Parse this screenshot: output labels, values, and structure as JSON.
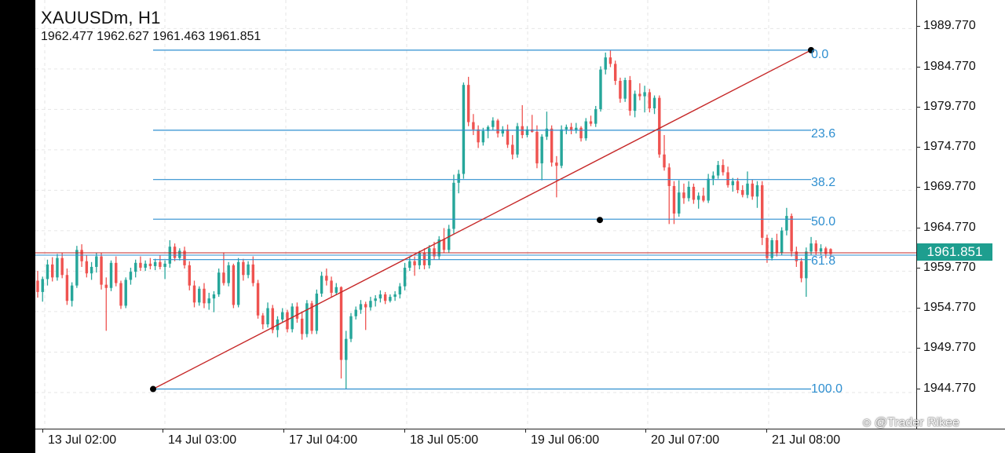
{
  "header": {
    "title": "XAUUSDm, H1",
    "ohlc": "1962.477 1962.627 1961.463 1961.851"
  },
  "current_price": "1961.851",
  "watermark": "@Trader Rikee",
  "colors": {
    "bull": "#26a69a",
    "bear": "#ef5350",
    "fib": "#2f8fd0",
    "trend": "#c62828",
    "badge": "#1e9e8f",
    "grid": "#e6e6e6"
  },
  "chart_data": {
    "type": "candlestick",
    "symbol": "XAUUSDm",
    "timeframe": "H1",
    "ylim": [
      1940.3,
      1993.3
    ],
    "y_ticks": [
      "1989.770",
      "1984.770",
      "1979.770",
      "1974.770",
      "1969.770",
      "1964.770",
      "1959.770",
      "1954.770",
      "1949.770",
      "1944.770"
    ],
    "x_ticks": [
      "13 Jul 02:00",
      "14 Jul 03:00",
      "17 Jul 04:00",
      "18 Jul 05:00",
      "19 Jul 06:00",
      "20 Jul 07:00",
      "21 Jul 08:00"
    ],
    "grid": true,
    "fibonacci": {
      "high": 1987.1,
      "low": 1945.2,
      "levels": [
        {
          "label": "0.0",
          "price": 1987.1
        },
        {
          "label": "23.6",
          "price": 1977.2
        },
        {
          "label": "38.2",
          "price": 1971.1
        },
        {
          "label": "50.0",
          "price": 1966.2
        },
        {
          "label": "61.8",
          "price": 1961.2
        },
        {
          "label": "100.0",
          "price": 1945.2
        }
      ]
    },
    "trendline": {
      "start_price": 1945.2,
      "end_price": 1987.1,
      "mid_price": 1966.1
    },
    "current_price": 1961.851,
    "candles": [
      [
        1958.6,
        1959.8,
        1956.5,
        1957.2
      ],
      [
        1957.2,
        1959.1,
        1956.0,
        1958.8
      ],
      [
        1958.8,
        1961.2,
        1958.0,
        1960.6
      ],
      [
        1960.6,
        1961.5,
        1958.5,
        1959.0
      ],
      [
        1959.0,
        1961.9,
        1958.6,
        1961.4
      ],
      [
        1961.4,
        1962.0,
        1958.9,
        1959.3
      ],
      [
        1959.3,
        1960.1,
        1955.6,
        1956.1
      ],
      [
        1956.1,
        1958.4,
        1955.4,
        1958.0
      ],
      [
        1958.0,
        1962.9,
        1957.7,
        1962.4
      ],
      [
        1962.4,
        1963.1,
        1960.3,
        1961.0
      ],
      [
        1961.0,
        1961.7,
        1959.0,
        1959.5
      ],
      [
        1959.5,
        1960.9,
        1958.7,
        1960.3
      ],
      [
        1960.3,
        1962.0,
        1959.6,
        1961.6
      ],
      [
        1961.6,
        1962.0,
        1957.5,
        1958.1
      ],
      [
        1958.1,
        1959.0,
        1952.4,
        1957.7
      ],
      [
        1957.7,
        1961.1,
        1957.3,
        1960.8
      ],
      [
        1960.8,
        1961.6,
        1957.9,
        1958.3
      ],
      [
        1958.3,
        1958.6,
        1955.1,
        1955.5
      ],
      [
        1955.5,
        1959.0,
        1955.2,
        1958.7
      ],
      [
        1958.7,
        1960.2,
        1958.1,
        1959.7
      ],
      [
        1959.7,
        1961.2,
        1959.0,
        1960.8
      ],
      [
        1960.8,
        1961.6,
        1959.8,
        1960.2
      ],
      [
        1960.2,
        1961.1,
        1959.8,
        1960.7
      ],
      [
        1960.7,
        1961.4,
        1960.0,
        1960.4
      ],
      [
        1960.4,
        1961.3,
        1959.9,
        1960.9
      ],
      [
        1960.9,
        1961.7,
        1960.0,
        1960.3
      ],
      [
        1960.3,
        1961.1,
        1958.8,
        1960.7
      ],
      [
        1960.7,
        1963.6,
        1960.2,
        1962.8
      ],
      [
        1962.8,
        1963.2,
        1961.0,
        1961.4
      ],
      [
        1961.4,
        1962.6,
        1961.1,
        1962.3
      ],
      [
        1962.3,
        1962.8,
        1960.1,
        1960.5
      ],
      [
        1960.5,
        1961.0,
        1957.4,
        1958.0
      ],
      [
        1958.0,
        1958.6,
        1955.3,
        1955.9
      ],
      [
        1955.9,
        1957.9,
        1955.5,
        1957.6
      ],
      [
        1957.6,
        1958.3,
        1955.2,
        1955.8
      ],
      [
        1955.8,
        1957.1,
        1955.0,
        1956.4
      ],
      [
        1956.4,
        1957.3,
        1954.7,
        1956.9
      ],
      [
        1956.9,
        1960.1,
        1956.6,
        1959.6
      ],
      [
        1959.6,
        1962.1,
        1958.0,
        1958.3
      ],
      [
        1958.3,
        1960.9,
        1957.9,
        1960.5
      ],
      [
        1960.5,
        1960.7,
        1955.2,
        1955.6
      ],
      [
        1955.6,
        1961.4,
        1955.3,
        1960.9
      ],
      [
        1960.9,
        1961.3,
        1958.6,
        1959.3
      ],
      [
        1959.3,
        1961.0,
        1958.9,
        1960.6
      ],
      [
        1960.6,
        1961.6,
        1957.9,
        1958.3
      ],
      [
        1958.3,
        1958.7,
        1953.9,
        1954.3
      ],
      [
        1954.3,
        1954.6,
        1952.6,
        1953.2
      ],
      [
        1953.2,
        1955.9,
        1952.8,
        1955.2
      ],
      [
        1955.2,
        1955.6,
        1952.1,
        1952.5
      ],
      [
        1952.5,
        1954.2,
        1951.6,
        1953.8
      ],
      [
        1953.8,
        1955.2,
        1953.4,
        1954.7
      ],
      [
        1954.7,
        1955.0,
        1952.2,
        1952.6
      ],
      [
        1952.6,
        1955.8,
        1952.2,
        1955.4
      ],
      [
        1955.4,
        1955.9,
        1953.4,
        1953.9
      ],
      [
        1953.9,
        1954.8,
        1951.3,
        1952.0
      ],
      [
        1952.0,
        1956.2,
        1951.6,
        1955.8
      ],
      [
        1955.8,
        1956.1,
        1952.0,
        1952.4
      ],
      [
        1952.4,
        1957.5,
        1952.0,
        1957.0
      ],
      [
        1957.0,
        1959.7,
        1956.6,
        1959.2
      ],
      [
        1959.2,
        1960.1,
        1958.0,
        1958.6
      ],
      [
        1958.6,
        1959.1,
        1956.5,
        1957.1
      ],
      [
        1957.1,
        1958.3,
        1956.8,
        1957.8
      ],
      [
        1957.8,
        1957.9,
        1946.5,
        1948.8
      ],
      [
        1948.8,
        1952.4,
        1945.2,
        1951.4
      ],
      [
        1951.4,
        1954.6,
        1951.0,
        1954.2
      ],
      [
        1954.2,
        1955.4,
        1953.8,
        1955.0
      ],
      [
        1955.0,
        1956.2,
        1954.5,
        1955.7
      ],
      [
        1955.7,
        1956.0,
        1952.5,
        1955.3
      ],
      [
        1955.3,
        1956.6,
        1954.9,
        1956.1
      ],
      [
        1956.1,
        1956.8,
        1955.4,
        1956.4
      ],
      [
        1956.4,
        1957.4,
        1955.9,
        1956.9
      ],
      [
        1956.9,
        1957.2,
        1955.7,
        1956.1
      ],
      [
        1956.1,
        1956.9,
        1955.9,
        1956.6
      ],
      [
        1956.6,
        1957.3,
        1956.1,
        1956.9
      ],
      [
        1956.9,
        1958.3,
        1956.4,
        1957.9
      ],
      [
        1957.9,
        1960.8,
        1957.4,
        1960.2
      ],
      [
        1960.2,
        1961.6,
        1959.8,
        1961.0
      ],
      [
        1961.0,
        1961.6,
        1959.2,
        1960.5
      ],
      [
        1960.5,
        1962.3,
        1960.0,
        1962.0
      ],
      [
        1962.0,
        1962.6,
        1960.0,
        1960.5
      ],
      [
        1960.5,
        1963.0,
        1960.1,
        1962.6
      ],
      [
        1962.6,
        1963.4,
        1961.2,
        1961.6
      ],
      [
        1961.6,
        1964.1,
        1961.2,
        1963.7
      ],
      [
        1963.7,
        1965.1,
        1962.0,
        1962.4
      ],
      [
        1962.4,
        1965.5,
        1962.1,
        1965.0
      ],
      [
        1965.0,
        1971.7,
        1964.4,
        1970.7
      ],
      [
        1970.7,
        1972.3,
        1969.4,
        1971.8
      ],
      [
        1971.8,
        1983.1,
        1971.2,
        1982.8
      ],
      [
        1982.8,
        1983.8,
        1977.7,
        1978.2
      ],
      [
        1978.2,
        1979.2,
        1976.6,
        1977.3
      ],
      [
        1977.3,
        1977.8,
        1975.0,
        1975.7
      ],
      [
        1975.7,
        1977.5,
        1975.3,
        1977.1
      ],
      [
        1977.1,
        1977.8,
        1976.2,
        1977.6
      ],
      [
        1977.6,
        1978.8,
        1977.2,
        1978.4
      ],
      [
        1978.4,
        1978.6,
        1976.3,
        1976.8
      ],
      [
        1976.8,
        1977.7,
        1976.4,
        1977.3
      ],
      [
        1977.3,
        1977.9,
        1975.0,
        1975.4
      ],
      [
        1975.4,
        1976.6,
        1973.6,
        1974.2
      ],
      [
        1974.2,
        1978.1,
        1973.8,
        1977.7
      ],
      [
        1977.7,
        1980.3,
        1976.2,
        1976.6
      ],
      [
        1976.6,
        1977.7,
        1976.3,
        1977.3
      ],
      [
        1977.3,
        1979.1,
        1976.9,
        1977.0
      ],
      [
        1977.0,
        1977.8,
        1972.5,
        1973.1
      ],
      [
        1973.1,
        1976.7,
        1971.0,
        1976.4
      ],
      [
        1976.4,
        1979.5,
        1976.0,
        1977.4
      ],
      [
        1977.4,
        1977.8,
        1972.7,
        1973.2
      ],
      [
        1973.2,
        1974.0,
        1968.9,
        1972.8
      ],
      [
        1972.8,
        1977.8,
        1972.5,
        1977.3
      ],
      [
        1977.3,
        1977.9,
        1976.7,
        1977.6
      ],
      [
        1977.6,
        1978.1,
        1976.7,
        1977.2
      ],
      [
        1977.2,
        1978.1,
        1976.8,
        1977.5
      ],
      [
        1977.5,
        1977.7,
        1975.8,
        1976.2
      ],
      [
        1976.2,
        1978.7,
        1975.9,
        1978.3
      ],
      [
        1978.3,
        1979.0,
        1977.7,
        1978.0
      ],
      [
        1978.0,
        1980.2,
        1977.6,
        1979.8
      ],
      [
        1979.8,
        1985.1,
        1979.5,
        1984.7
      ],
      [
        1984.7,
        1986.8,
        1984.1,
        1986.2
      ],
      [
        1986.2,
        1987.1,
        1985.0,
        1985.4
      ],
      [
        1985.4,
        1985.8,
        1982.8,
        1983.3
      ],
      [
        1983.3,
        1983.7,
        1980.6,
        1981.1
      ],
      [
        1981.1,
        1983.7,
        1980.7,
        1983.4
      ],
      [
        1983.4,
        1983.9,
        1979.0,
        1979.6
      ],
      [
        1979.6,
        1982.1,
        1978.8,
        1981.7
      ],
      [
        1981.7,
        1983.0,
        1980.9,
        1981.4
      ],
      [
        1981.4,
        1982.7,
        1979.4,
        1981.9
      ],
      [
        1981.9,
        1982.3,
        1979.4,
        1979.9
      ],
      [
        1979.9,
        1981.5,
        1979.2,
        1981.2
      ],
      [
        1981.2,
        1981.5,
        1973.8,
        1974.2
      ],
      [
        1974.2,
        1976.6,
        1972.2,
        1972.6
      ],
      [
        1972.6,
        1973.1,
        1965.6,
        1970.3
      ],
      [
        1970.3,
        1970.9,
        1965.6,
        1966.9
      ],
      [
        1966.9,
        1971.0,
        1966.5,
        1969.5
      ],
      [
        1969.5,
        1970.6,
        1968.1,
        1968.8
      ],
      [
        1968.8,
        1970.9,
        1968.4,
        1970.2
      ],
      [
        1970.2,
        1970.6,
        1968.1,
        1968.6
      ],
      [
        1968.6,
        1969.5,
        1967.5,
        1969.1
      ],
      [
        1969.1,
        1970.1,
        1968.3,
        1968.5
      ],
      [
        1968.5,
        1971.8,
        1968.2,
        1971.2
      ],
      [
        1971.2,
        1972.1,
        1970.4,
        1971.6
      ],
      [
        1971.6,
        1973.4,
        1971.2,
        1972.9
      ],
      [
        1972.9,
        1973.6,
        1971.6,
        1972.0
      ],
      [
        1972.0,
        1972.7,
        1970.1,
        1970.4
      ],
      [
        1970.4,
        1971.3,
        1969.6,
        1970.9
      ],
      [
        1970.9,
        1971.3,
        1969.4,
        1969.8
      ],
      [
        1969.8,
        1970.4,
        1968.9,
        1969.2
      ],
      [
        1969.2,
        1972.1,
        1968.8,
        1970.6
      ],
      [
        1970.6,
        1971.1,
        1968.6,
        1969.0
      ],
      [
        1969.0,
        1970.9,
        1967.6,
        1970.4
      ],
      [
        1970.4,
        1970.9,
        1963.0,
        1963.9
      ],
      [
        1963.9,
        1964.3,
        1960.8,
        1961.4
      ],
      [
        1961.4,
        1963.9,
        1961.1,
        1963.6
      ],
      [
        1963.6,
        1964.4,
        1961.6,
        1962.0
      ],
      [
        1962.0,
        1965.2,
        1961.7,
        1964.8
      ],
      [
        1964.8,
        1967.6,
        1964.2,
        1966.6
      ],
      [
        1966.6,
        1966.9,
        1961.6,
        1962.2
      ],
      [
        1962.2,
        1962.8,
        1960.3,
        1961.0
      ],
      [
        1961.0,
        1961.4,
        1958.4,
        1958.9
      ],
      [
        1958.9,
        1962.7,
        1956.6,
        1962.2
      ],
      [
        1962.2,
        1964.0,
        1961.8,
        1963.2
      ],
      [
        1963.2,
        1963.6,
        1961.8,
        1962.2
      ],
      [
        1962.2,
        1963.1,
        1961.7,
        1962.6
      ],
      [
        1962.6,
        1962.8,
        1961.4,
        1961.9
      ],
      [
        1962.5,
        1962.6,
        1961.5,
        1961.9
      ]
    ]
  }
}
